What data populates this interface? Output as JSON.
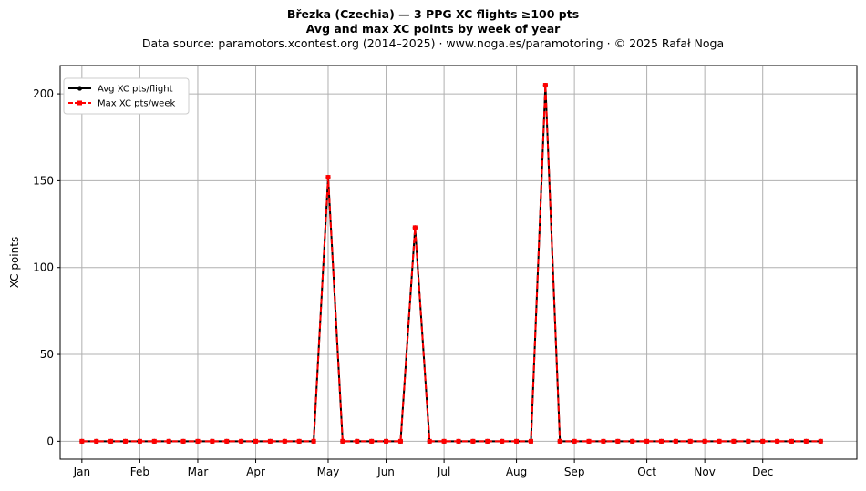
{
  "header": {
    "title": "Březka (Czechia)  —  3 PPG XC flights ≥100 pts",
    "subtitle": "Avg and max XC points by week of year",
    "source": "Data source: paramotors.xcontest.org (2014–2025)  ·  www.noga.es/paramotoring  ·  © 2025 Rafał Noga"
  },
  "chart_data": {
    "type": "line",
    "title": "Březka (Czechia)  —  3 PPG XC flights ≥100 pts",
    "subtitle": "Avg and max XC points by week of year",
    "xlabel": "",
    "ylabel": "XC points",
    "x_unit_note": "week of year",
    "xlim": [
      -1.5,
      53.5
    ],
    "ylim": [
      -10.3,
      216.3
    ],
    "grid": true,
    "legend_position": "upper left",
    "x_ticks": [
      {
        "label": "Jan",
        "x": 0
      },
      {
        "label": "Feb",
        "x": 4
      },
      {
        "label": "Mar",
        "x": 8
      },
      {
        "label": "Apr",
        "x": 12
      },
      {
        "label": "May",
        "x": 17
      },
      {
        "label": "Jun",
        "x": 21
      },
      {
        "label": "Jul",
        "x": 25
      },
      {
        "label": "Aug",
        "x": 30
      },
      {
        "label": "Sep",
        "x": 34
      },
      {
        "label": "Oct",
        "x": 39
      },
      {
        "label": "Nov",
        "x": 43
      },
      {
        "label": "Dec",
        "x": 47
      }
    ],
    "y_ticks": [
      0,
      50,
      100,
      150,
      200
    ],
    "x": [
      0,
      1,
      2,
      3,
      4,
      5,
      6,
      7,
      8,
      9,
      10,
      11,
      12,
      13,
      14,
      15,
      16,
      17,
      18,
      19,
      20,
      21,
      22,
      23,
      24,
      25,
      26,
      27,
      28,
      29,
      30,
      31,
      32,
      33,
      34,
      35,
      36,
      37,
      38,
      39,
      40,
      41,
      42,
      43,
      44,
      45,
      46,
      47,
      48,
      49,
      50,
      51
    ],
    "series": [
      {
        "name": "Avg XC pts/flight",
        "color": "#000000",
        "marker": "circle",
        "linestyle": "solid",
        "values": [
          0,
          0,
          0,
          0,
          0,
          0,
          0,
          0,
          0,
          0,
          0,
          0,
          0,
          0,
          0,
          0,
          0,
          152,
          0,
          0,
          0,
          0,
          0,
          123,
          0,
          0,
          0,
          0,
          0,
          0,
          0,
          0,
          205,
          0,
          0,
          0,
          0,
          0,
          0,
          0,
          0,
          0,
          0,
          0,
          0,
          0,
          0,
          0,
          0,
          0,
          0,
          0
        ]
      },
      {
        "name": "Max XC pts/week",
        "color": "#ff0000",
        "marker": "square",
        "linestyle": "dashed",
        "values": [
          0,
          0,
          0,
          0,
          0,
          0,
          0,
          0,
          0,
          0,
          0,
          0,
          0,
          0,
          0,
          0,
          0,
          152,
          0,
          0,
          0,
          0,
          0,
          123,
          0,
          0,
          0,
          0,
          0,
          0,
          0,
          0,
          205,
          0,
          0,
          0,
          0,
          0,
          0,
          0,
          0,
          0,
          0,
          0,
          0,
          0,
          0,
          0,
          0,
          0,
          0,
          0
        ]
      }
    ]
  }
}
